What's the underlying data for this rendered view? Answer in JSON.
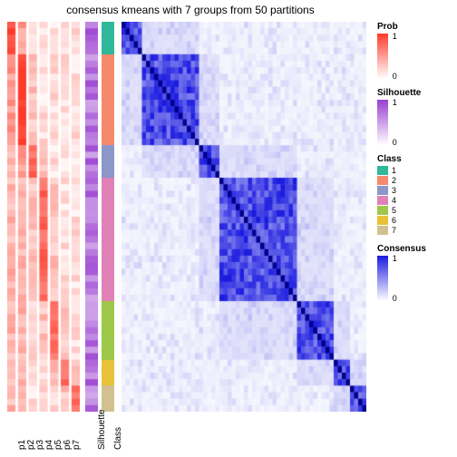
{
  "title": "consensus kmeans with 7 groups from 50 partitions",
  "layout": {
    "prob_cols": 7,
    "p_labels": [
      "p1",
      "p2",
      "p3",
      "p4",
      "p5",
      "p6",
      "p7"
    ],
    "extra_labels": [
      "Silhouette",
      "Class"
    ],
    "rows": 60,
    "class_sizes": [
      5,
      14,
      5,
      13,
      6,
      9,
      4,
      4
    ],
    "class_id": [
      1,
      2,
      3,
      4,
      4,
      5,
      6,
      7
    ]
  },
  "colors": {
    "prob_low": "#ffffff",
    "prob_high": "#ff3a2a",
    "silhouette_low": "#ffffff",
    "silhouette_high": "#9a3fd0",
    "consensus_low": "#ffffff",
    "consensus_high": "#1a1ae0",
    "consensus_diag": "#00008b",
    "class": {
      "1": "#2fb89a",
      "2": "#f5896b",
      "3": "#8d96c8",
      "4": "#e082b8",
      "5": "#9ec84a",
      "6": "#e8c23a",
      "7": "#d2c090"
    },
    "title_color": "#000000",
    "label_color": "#000000"
  },
  "legends": {
    "prob": {
      "title": "Prob",
      "min": "0",
      "max": "1"
    },
    "silhouette": {
      "title": "Silhouette",
      "min": "0",
      "max": "1"
    },
    "class": {
      "title": "Class",
      "items": [
        "1",
        "2",
        "3",
        "4",
        "5",
        "6",
        "7"
      ]
    },
    "consensus": {
      "title": "Consensus",
      "min": "0",
      "max": "1"
    }
  },
  "fontsize": {
    "title": 12,
    "legend_title": 10,
    "legend_label": 9,
    "axis": 10
  }
}
